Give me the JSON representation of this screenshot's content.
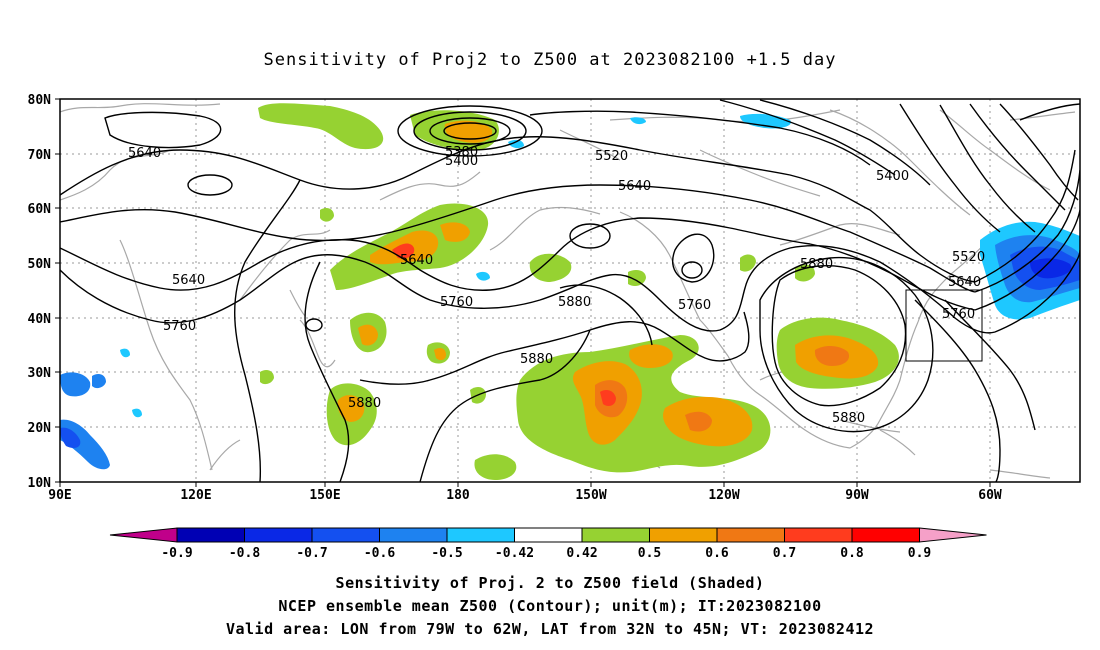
{
  "title": "Sensitivity of Proj2 to Z500 at 2023082100 +1.5 day",
  "axes": {
    "lat_labels": [
      "80N",
      "70N",
      "60N",
      "50N",
      "40N",
      "30N",
      "20N",
      "10N"
    ],
    "lon_labels": [
      "90E",
      "120E",
      "150E",
      "180",
      "150W",
      "120W",
      "90W",
      "60W"
    ]
  },
  "contour_labels": {
    "c5640_w": "5640",
    "c5380": "5380",
    "c5400_w": "5400",
    "c5520_c": "5520",
    "c5640_c": "5640",
    "c5400_e": "5400",
    "c5640_sw": "5640",
    "c5760_sw": "5760",
    "c5640_mid": "5640",
    "c5760_mid": "5760",
    "c5880_mid": "5880",
    "c5760_e": "5760",
    "c5880_ne": "5880",
    "c5520_e": "5520",
    "c5640_e": "5640",
    "c5760_box": "5760",
    "c5880_s": "5880",
    "c5880_w": "5880",
    "c5880_se": "5880"
  },
  "colorbar": {
    "labels": [
      "-0.9",
      "-0.8",
      "-0.7",
      "-0.6",
      "-0.5",
      "-0.42",
      "0.42",
      "0.5",
      "0.6",
      "0.7",
      "0.8",
      "0.9"
    ],
    "colors": {
      "low_tri": "#c0008a",
      "bins": [
        "#0000b4",
        "#0a28e6",
        "#1450f0",
        "#1e82f0",
        "#1ec8ff",
        "#ffffff",
        "#96d232",
        "#f0a000",
        "#f07814",
        "#ff3c1e",
        "#ff0000"
      ],
      "high_tri": "#f5a0c8"
    }
  },
  "captions": {
    "line1": "Sensitivity of Proj. 2 to Z500 field (Shaded)",
    "line2": "NCEP ensemble mean Z500 (Contour); unit(m); IT:2023082100",
    "line3": "Valid area: LON from 79W to 62W, LAT from 32N to 45N; VT: 2023082412"
  },
  "valid_area": {
    "lon": [
      "79W",
      "62W"
    ],
    "lat": [
      "32N",
      "45N"
    ]
  }
}
